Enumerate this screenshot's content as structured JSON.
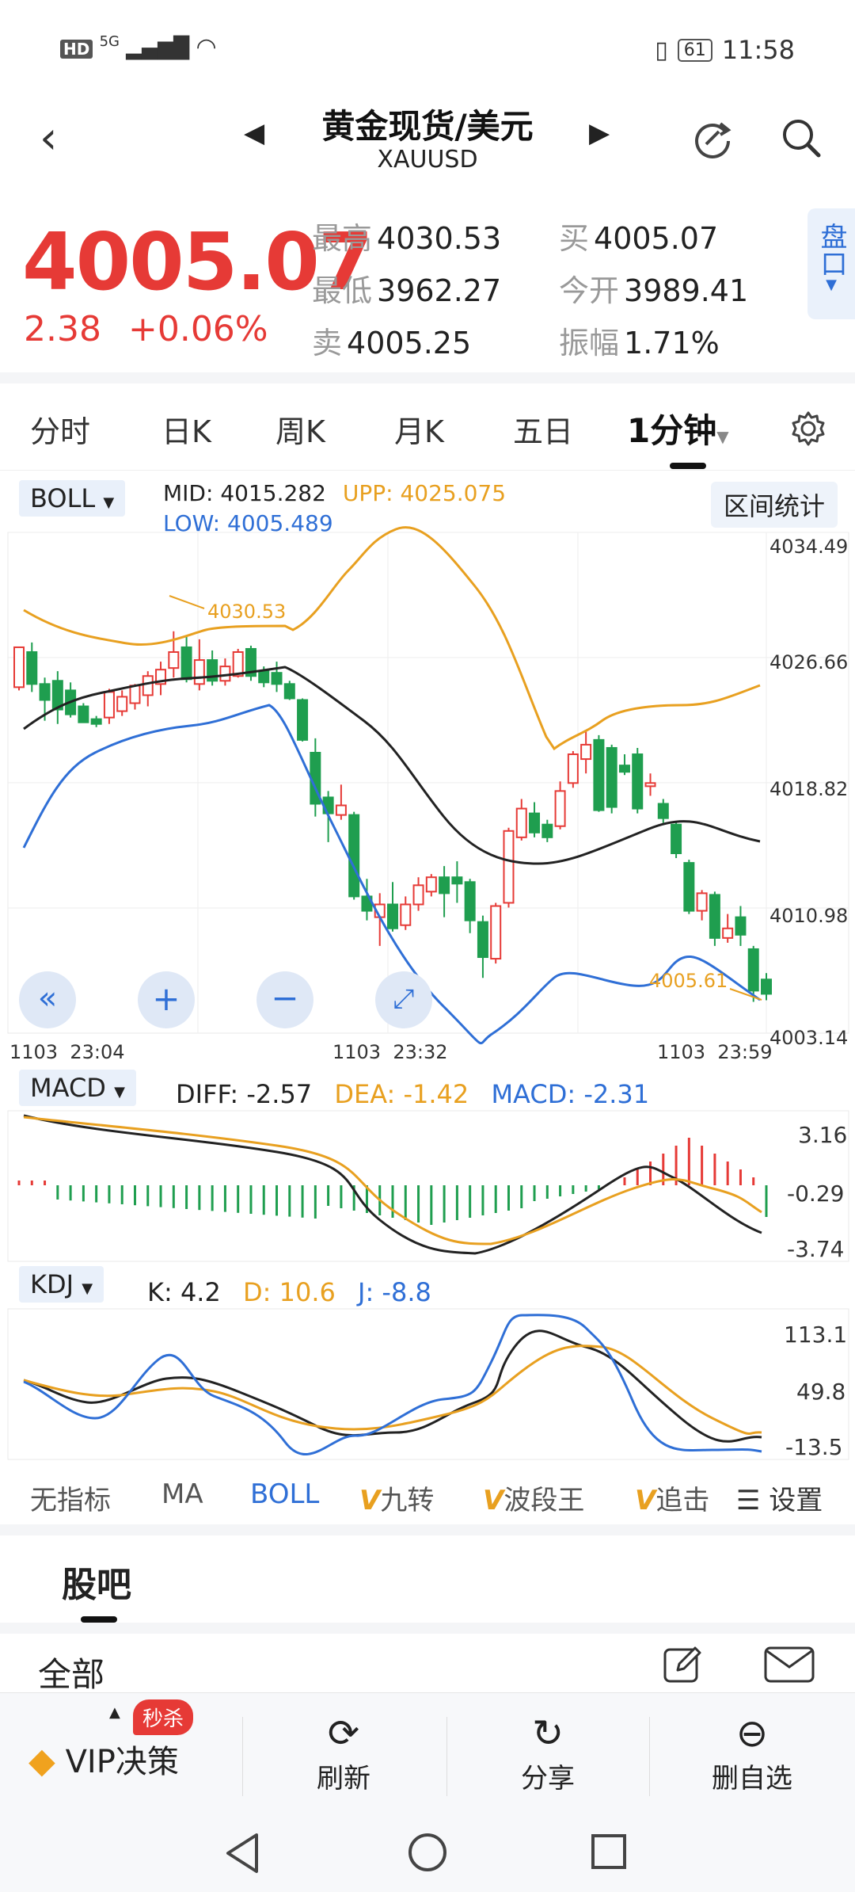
{
  "status": {
    "left_text": "HD 5G",
    "battery": "61",
    "time": "11:58"
  },
  "header": {
    "title": "黄金现货/美元",
    "symbol": "XAUUSD"
  },
  "quote": {
    "price": "4005.07",
    "change": "2.38",
    "change_pct": "+0.06%",
    "high_label": "最高",
    "high": "4030.53",
    "low_label": "最低",
    "low": "3962.27",
    "sell_label": "卖",
    "sell": "4005.25",
    "buy_label": "买",
    "buy": "4005.07",
    "open_label": "今开",
    "open": "3989.41",
    "amp_label": "振幅",
    "amp": "1.71%",
    "pankou": "盘口"
  },
  "tabs": [
    {
      "label": "分时"
    },
    {
      "label": "日K"
    },
    {
      "label": "周K"
    },
    {
      "label": "月K"
    },
    {
      "label": "五日"
    },
    {
      "label": "1分钟"
    }
  ],
  "boll": {
    "selector": "BOLL",
    "mid_label": "MID:",
    "mid": "4015.282",
    "upp_label": "UPP:",
    "upp": "4025.075",
    "low_label": "LOW:",
    "low": "4005.489",
    "range_btn": "区间统计",
    "price_ticks": [
      "4034.49",
      "4026.66",
      "4018.82",
      "4010.98",
      "4003.14"
    ],
    "time_ticks": [
      "1103  23:04",
      "1103  23:32",
      "1103  23:59"
    ],
    "annot_high": "4030.53",
    "annot_last": "4005.61"
  },
  "macd": {
    "selector": "MACD",
    "diff": "DIFF: -2.57",
    "dea": "DEA: -1.42",
    "macd": "MACD: -2.31",
    "ticks": [
      "3.16",
      "-0.29",
      "-3.74"
    ]
  },
  "kdj": {
    "selector": "KDJ",
    "k": "K: 4.2",
    "d": "D: 10.6",
    "j": "J: -8.8",
    "ticks": [
      "113.1",
      "49.8",
      "-13.5"
    ]
  },
  "indicators": [
    "无指标",
    "MA",
    "BOLL",
    "九转",
    "波段王",
    "追击",
    "设置"
  ],
  "guba": {
    "title": "股吧",
    "all": "全部"
  },
  "bottom": {
    "vip": "VIP决策",
    "badge": "秒杀",
    "refresh": "刷新",
    "share": "分享",
    "remove": "删自选"
  },
  "colors": {
    "up": "#e63a36",
    "down": "#1f9e4f",
    "orange": "#e8a020",
    "blue": "#2f6fd6"
  },
  "chart_data": {
    "type": "candlestick",
    "title": "",
    "y_range": [
      4003.14,
      4034.49
    ],
    "candles": [
      {
        "o": 4024.8,
        "c": 4027.3,
        "h": 4027.3,
        "l": 4024.6
      },
      {
        "o": 4027.0,
        "c": 4025.0,
        "h": 4027.6,
        "l": 4024.5
      },
      {
        "o": 4025.0,
        "c": 4024.0,
        "h": 4025.4,
        "l": 4022.7
      },
      {
        "o": 4025.2,
        "c": 4023.4,
        "h": 4025.8,
        "l": 4022.5
      },
      {
        "o": 4024.6,
        "c": 4023.1,
        "h": 4025.1,
        "l": 4022.9
      },
      {
        "o": 4023.6,
        "c": 4022.6,
        "h": 4023.8,
        "l": 4022.6
      },
      {
        "o": 4022.8,
        "c": 4022.5,
        "h": 4023.0,
        "l": 4022.3
      },
      {
        "o": 4022.9,
        "c": 4024.5,
        "h": 4024.7,
        "l": 4022.5
      },
      {
        "o": 4023.3,
        "c": 4024.2,
        "h": 4024.6,
        "l": 4023.0
      },
      {
        "o": 4023.8,
        "c": 4024.9,
        "h": 4025.0,
        "l": 4023.4
      },
      {
        "o": 4024.3,
        "c": 4025.5,
        "h": 4025.8,
        "l": 4023.6
      },
      {
        "o": 4025.0,
        "c": 4025.9,
        "h": 4026.4,
        "l": 4024.3
      },
      {
        "o": 4026.0,
        "c": 4027.0,
        "h": 4028.3,
        "l": 4025.4
      },
      {
        "o": 4027.3,
        "c": 4025.3,
        "h": 4028.0,
        "l": 4025.1
      },
      {
        "o": 4025.0,
        "c": 4026.5,
        "h": 4027.8,
        "l": 4024.6
      },
      {
        "o": 4026.5,
        "c": 4025.2,
        "h": 4027.1,
        "l": 4024.9
      },
      {
        "o": 4025.2,
        "c": 4026.1,
        "h": 4026.6,
        "l": 4024.9
      },
      {
        "o": 4025.5,
        "c": 4027.0,
        "h": 4027.2,
        "l": 4025.4
      },
      {
        "o": 4027.2,
        "c": 4025.5,
        "h": 4027.4,
        "l": 4025.2
      },
      {
        "o": 4025.8,
        "c": 4025.1,
        "h": 4026.1,
        "l": 4024.8
      },
      {
        "o": 4025.7,
        "c": 4025.0,
        "h": 4026.4,
        "l": 4024.5
      },
      {
        "o": 4025.0,
        "c": 4024.1,
        "h": 4025.2,
        "l": 4024.0
      },
      {
        "o": 4024.0,
        "c": 4021.5,
        "h": 4024.1,
        "l": 4021.4
      },
      {
        "o": 4020.7,
        "c": 4017.5,
        "h": 4021.6,
        "l": 4016.7
      },
      {
        "o": 4017.9,
        "c": 4016.9,
        "h": 4018.3,
        "l": 4015.1
      },
      {
        "o": 4016.8,
        "c": 4017.4,
        "h": 4018.7,
        "l": 4016.5
      },
      {
        "o": 4016.8,
        "c": 4011.7,
        "h": 4017.0,
        "l": 4011.5
      },
      {
        "o": 4011.7,
        "c": 4010.8,
        "h": 4012.8,
        "l": 4010.2
      },
      {
        "o": 4010.4,
        "c": 4011.2,
        "h": 4011.9,
        "l": 4008.6
      },
      {
        "o": 4011.2,
        "c": 4009.7,
        "h": 4012.6,
        "l": 4009.5
      },
      {
        "o": 4009.9,
        "c": 4011.2,
        "h": 4011.7,
        "l": 4009.6
      },
      {
        "o": 4011.2,
        "c": 4012.4,
        "h": 4012.9,
        "l": 4010.8
      },
      {
        "o": 4012.0,
        "c": 4012.9,
        "h": 4013.1,
        "l": 4011.7
      },
      {
        "o": 4012.9,
        "c": 4011.9,
        "h": 4013.6,
        "l": 4010.4
      },
      {
        "o": 4012.9,
        "c": 4012.5,
        "h": 4013.9,
        "l": 4011.3
      },
      {
        "o": 4012.6,
        "c": 4010.2,
        "h": 4012.8,
        "l": 4009.4
      },
      {
        "o": 4010.1,
        "c": 4007.9,
        "h": 4010.5,
        "l": 4006.6
      },
      {
        "o": 4007.8,
        "c": 4011.1,
        "h": 4011.3,
        "l": 4007.5
      },
      {
        "o": 4011.3,
        "c": 4015.8,
        "h": 4016.0,
        "l": 4011.0
      },
      {
        "o": 4015.4,
        "c": 4017.2,
        "h": 4017.8,
        "l": 4015.2
      },
      {
        "o": 4016.9,
        "c": 4015.7,
        "h": 4017.6,
        "l": 4015.4
      },
      {
        "o": 4016.2,
        "c": 4015.4,
        "h": 4016.5,
        "l": 4015.1
      },
      {
        "o": 4016.1,
        "c": 4018.3,
        "h": 4018.9,
        "l": 4015.9
      },
      {
        "o": 4018.8,
        "c": 4020.6,
        "h": 4020.8,
        "l": 4018.5
      },
      {
        "o": 4020.3,
        "c": 4021.2,
        "h": 4022.1,
        "l": 4019.4
      },
      {
        "o": 4021.5,
        "c": 4017.1,
        "h": 4021.8,
        "l": 4017.0
      },
      {
        "o": 4021.0,
        "c": 4017.3,
        "h": 4021.2,
        "l": 4016.9
      },
      {
        "o": 4019.9,
        "c": 4019.5,
        "h": 4020.6,
        "l": 4019.3
      },
      {
        "o": 4020.6,
        "c": 4017.2,
        "h": 4021.0,
        "l": 4016.9
      },
      {
        "o": 4018.6,
        "c": 4018.8,
        "h": 4019.4,
        "l": 4018.0
      },
      {
        "o": 4017.5,
        "c": 4016.6,
        "h": 4017.8,
        "l": 4016.3
      },
      {
        "o": 4016.2,
        "c": 4014.4,
        "h": 4016.4,
        "l": 4014.1
      },
      {
        "o": 4013.8,
        "c": 4010.8,
        "h": 4014.0,
        "l": 4010.6
      },
      {
        "o": 4010.8,
        "c": 4011.9,
        "h": 4012.1,
        "l": 4010.2
      },
      {
        "o": 4011.8,
        "c": 4009.1,
        "h": 4012.0,
        "l": 4008.6
      },
      {
        "o": 4009.1,
        "c": 4009.7,
        "h": 4010.6,
        "l": 4008.8
      },
      {
        "o": 4010.4,
        "c": 4009.3,
        "h": 4011.1,
        "l": 4008.6
      },
      {
        "o": 4008.4,
        "c": 4005.8,
        "h": 4008.6,
        "l": 4005.1
      },
      {
        "o": 4006.5,
        "c": 4005.6,
        "h": 4006.9,
        "l": 4005.2
      }
    ]
  }
}
